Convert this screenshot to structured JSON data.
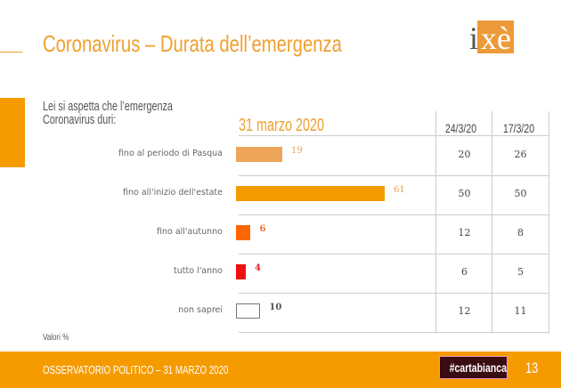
{
  "header": {
    "title": "Coronavirus – Durata dell’emergenza",
    "logo": "ixè"
  },
  "question": [
    "Lei si aspetta che l’emergenza",
    "Coronavirus duri:"
  ],
  "note": "Valori %",
  "footer": {
    "text": "OSSERVATORIO POLITICO – 31 MARZO 2020",
    "hashtag": "#cartabianca",
    "page": "13"
  },
  "chart_data": {
    "type": "bar",
    "title": "31 marzo 2020",
    "categories": [
      "fino al periodo di Pasqua",
      "fino all'inizio dell'estate",
      "fino all'autunno",
      "tutto l'anno",
      "non saprei"
    ],
    "values": [
      19,
      61,
      6,
      4,
      10
    ],
    "colors": [
      "#EDA55A",
      "#F59B00",
      "#FF6600",
      "#EE1111",
      "#ffffff"
    ],
    "label_colors": [
      "#E8A050",
      "#E8A050",
      "#F07020",
      "#E02020",
      "#555555"
    ],
    "comparison": {
      "headers": [
        "24/3/20",
        "17/3/20"
      ],
      "values": [
        [
          20,
          26
        ],
        [
          50,
          50
        ],
        [
          12,
          8
        ],
        [
          6,
          5
        ],
        [
          12,
          11
        ]
      ]
    }
  }
}
